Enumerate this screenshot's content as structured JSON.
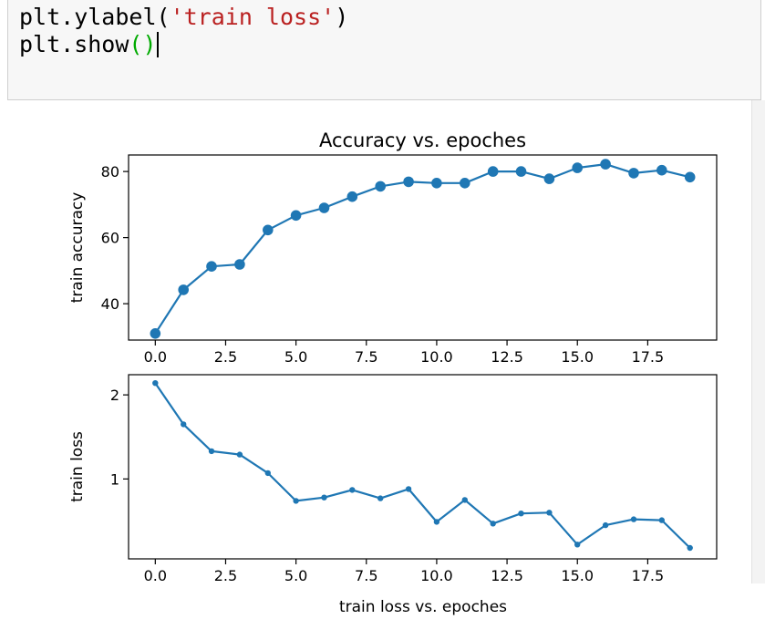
{
  "code": {
    "line1_prefix": "plt.ylabel(",
    "line1_string": "'train loss'",
    "line1_suffix": ")",
    "line2_prefix": "plt.show",
    "line2_parens": "()"
  },
  "colors": {
    "series": "#1f77b4",
    "string": "#ba2121",
    "paren": "#00aa00"
  },
  "chart_data": [
    {
      "type": "line",
      "title": "Accuracy vs. epoches",
      "xlabel": "",
      "ylabel": "train accuracy",
      "marker": "large-dot",
      "xlim": [
        -0.95,
        19.95
      ],
      "ylim": [
        29,
        85
      ],
      "xticks": [
        0.0,
        2.5,
        5.0,
        7.5,
        10.0,
        12.5,
        15.0,
        17.5
      ],
      "xtick_labels": [
        "0.0",
        "2.5",
        "5.0",
        "7.5",
        "10.0",
        "12.5",
        "15.0",
        "17.5"
      ],
      "yticks": [
        40,
        60,
        80
      ],
      "ytick_labels": [
        "40",
        "60",
        "80"
      ],
      "x": [
        0,
        1,
        2,
        3,
        4,
        5,
        6,
        7,
        8,
        9,
        10,
        11,
        12,
        13,
        14,
        15,
        16,
        17,
        18,
        19
      ],
      "y": [
        31.0,
        44.2,
        51.3,
        51.9,
        62.3,
        66.7,
        69.0,
        72.4,
        75.5,
        76.9,
        76.5,
        76.5,
        80.0,
        80.0,
        77.8,
        81.1,
        82.2,
        79.5,
        80.4,
        78.3
      ]
    },
    {
      "type": "line",
      "title": "",
      "xlabel": "train loss vs. epoches",
      "ylabel": "train loss",
      "marker": "small-dot",
      "xlim": [
        -0.95,
        19.95
      ],
      "ylim": [
        0.05,
        2.24
      ],
      "xticks": [
        0.0,
        2.5,
        5.0,
        7.5,
        10.0,
        12.5,
        15.0,
        17.5
      ],
      "xtick_labels": [
        "0.0",
        "2.5",
        "5.0",
        "7.5",
        "10.0",
        "12.5",
        "15.0",
        "17.5"
      ],
      "yticks": [
        1,
        2
      ],
      "ytick_labels": [
        "1",
        "2"
      ],
      "x": [
        0,
        1,
        2,
        3,
        4,
        5,
        6,
        7,
        8,
        9,
        10,
        11,
        12,
        13,
        14,
        15,
        16,
        17,
        18,
        19
      ],
      "y": [
        2.14,
        1.65,
        1.33,
        1.29,
        1.07,
        0.74,
        0.78,
        0.87,
        0.77,
        0.88,
        0.49,
        0.75,
        0.47,
        0.59,
        0.6,
        0.22,
        0.45,
        0.52,
        0.51,
        0.18
      ]
    }
  ]
}
